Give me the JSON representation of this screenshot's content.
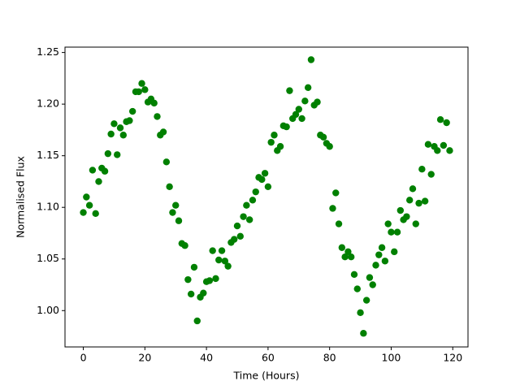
{
  "chart_data": {
    "type": "scatter",
    "xlabel": "Time (Hours)",
    "ylabel": "Normalised Flux",
    "color": "#008000",
    "x": [
      0,
      1,
      2,
      3,
      4,
      5,
      6,
      7,
      8,
      9,
      10,
      11,
      12,
      13,
      14,
      15,
      16,
      17,
      18,
      19,
      20,
      21,
      22,
      23,
      24,
      25,
      26,
      27,
      28,
      29,
      30,
      31,
      32,
      33,
      34,
      35,
      36,
      37,
      38,
      39,
      40,
      41,
      42,
      43,
      44,
      45,
      46,
      47,
      48,
      49,
      50,
      51,
      52,
      53,
      54,
      55,
      56,
      57,
      58,
      59,
      60,
      61,
      62,
      63,
      64,
      65,
      66,
      67,
      68,
      69,
      70,
      71,
      72,
      73,
      74,
      75,
      76,
      77,
      78,
      79,
      80,
      81,
      82,
      83,
      84,
      85,
      86,
      87,
      88,
      89,
      90,
      91,
      92,
      93,
      94,
      95,
      96,
      97,
      98,
      99,
      100,
      101,
      102,
      103,
      104,
      105,
      106,
      107,
      108,
      109,
      110,
      111,
      112,
      113,
      114,
      115,
      116,
      117,
      118,
      119
    ],
    "values": [
      1.095,
      1.11,
      1.102,
      1.136,
      1.094,
      1.125,
      1.138,
      1.135,
      1.152,
      1.171,
      1.181,
      1.151,
      1.177,
      1.17,
      1.183,
      1.184,
      1.193,
      1.212,
      1.212,
      1.22,
      1.214,
      1.202,
      1.205,
      1.201,
      1.188,
      1.17,
      1.173,
      1.144,
      1.12,
      1.095,
      1.102,
      1.087,
      1.065,
      1.063,
      1.03,
      1.016,
      1.042,
      0.99,
      1.013,
      1.017,
      1.028,
      1.029,
      1.058,
      1.031,
      1.049,
      1.058,
      1.048,
      1.043,
      1.066,
      1.069,
      1.082,
      1.072,
      1.091,
      1.102,
      1.088,
      1.107,
      1.115,
      1.129,
      1.127,
      1.133,
      1.12,
      1.163,
      1.17,
      1.155,
      1.159,
      1.179,
      1.178,
      1.213,
      1.186,
      1.19,
      1.195,
      1.186,
      1.203,
      1.216,
      1.243,
      1.199,
      1.202,
      1.17,
      1.168,
      1.162,
      1.159,
      1.099,
      1.114,
      1.084,
      1.061,
      1.052,
      1.057,
      1.052,
      1.035,
      1.021,
      0.998,
      0.978,
      1.01,
      1.032,
      1.025,
      1.044,
      1.054,
      1.061,
      1.048,
      1.084,
      1.076,
      1.057,
      1.076,
      1.097,
      1.088,
      1.091,
      1.107,
      1.118,
      1.084,
      1.104,
      1.137,
      1.106,
      1.161,
      1.132,
      1.159,
      1.155,
      1.185,
      1.16,
      1.182,
      1.155
    ],
    "xlim": [
      -5.95,
      124.95
    ],
    "ylim": [
      0.9648,
      1.2552
    ],
    "xticks": [
      0,
      20,
      40,
      60,
      80,
      100,
      120
    ],
    "yticks": [
      {
        "value": 1,
        "label": "1.00"
      },
      1.05,
      {
        "value": 1.1,
        "label": "1.10"
      },
      1.15,
      {
        "value": 1.2,
        "label": "1.20"
      },
      1.25
    ]
  }
}
